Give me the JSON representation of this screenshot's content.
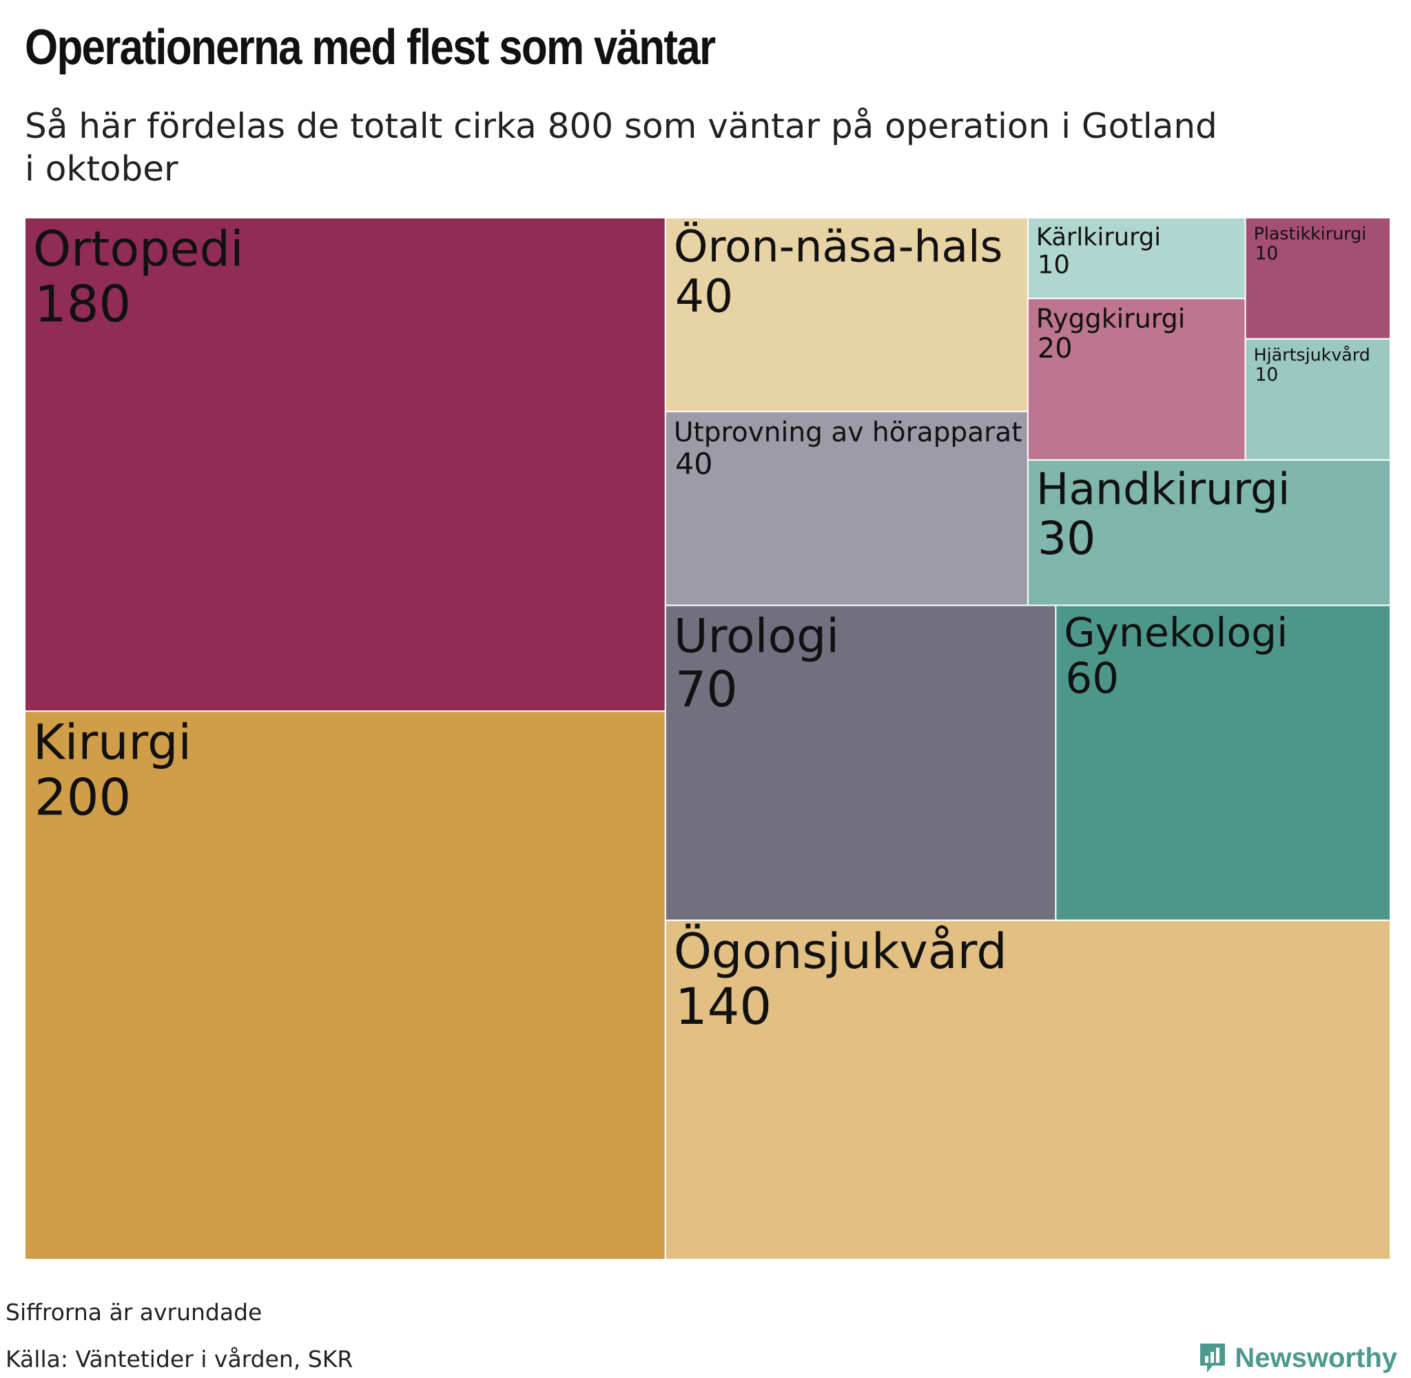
{
  "title": "Operationerna med flest som väntar",
  "subtitle": "Så här fördelas de totalt cirka 800 som väntar på operation i Gotland i oktober",
  "footnote": "Siffrorna är avrundade",
  "source": "Källa: Väntetider i vården, SKR",
  "brand": {
    "name": "Newsworthy",
    "icon": "newsworthy-logo-icon",
    "color": "#4c9a8e"
  },
  "chart_data": {
    "type": "treemap",
    "title": "Operationerna med flest som väntar",
    "subtitle": "Så här fördelas de totalt cirka 800 som väntar på operation i Gotland i oktober",
    "items": [
      {
        "label": "Ortopedi",
        "value": 180,
        "value_label": "180",
        "color": "#902c56"
      },
      {
        "label": "Kirurgi",
        "value": 200,
        "value_label": "200",
        "color": "#d09d49"
      },
      {
        "label": "Öron-näsa-hals",
        "value": 40,
        "value_label": "40",
        "color": "#e8d3a4"
      },
      {
        "label": "Utprovning av hörapparat",
        "value": 40,
        "value_label": "40",
        "color": "#9c9ba7"
      },
      {
        "label": "Kärlkirurgi",
        "value": 10,
        "value_label": "10",
        "color": "#b0d6d0"
      },
      {
        "label": "Plastikkirurgi",
        "value": 10,
        "value_label": "10",
        "color": "#a54f74"
      },
      {
        "label": "Ryggkirurgi",
        "value": 20,
        "value_label": "20",
        "color": "#be758f"
      },
      {
        "label": "Hjärtsjukvård",
        "value": 10,
        "value_label": "10",
        "color": "#9bc8c1"
      },
      {
        "label": "Handkirurgi",
        "value": 30,
        "value_label": "30",
        "color": "#7fb7ad"
      },
      {
        "label": "Urologi",
        "value": 70,
        "value_label": "70",
        "color": "#72707e"
      },
      {
        "label": "Gynekologi",
        "value": 60,
        "value_label": "60",
        "color": "#4d978a"
      },
      {
        "label": "Ögonsjukvård",
        "value": 140,
        "value_label": "140",
        "color": "#e2bf82"
      }
    ]
  }
}
